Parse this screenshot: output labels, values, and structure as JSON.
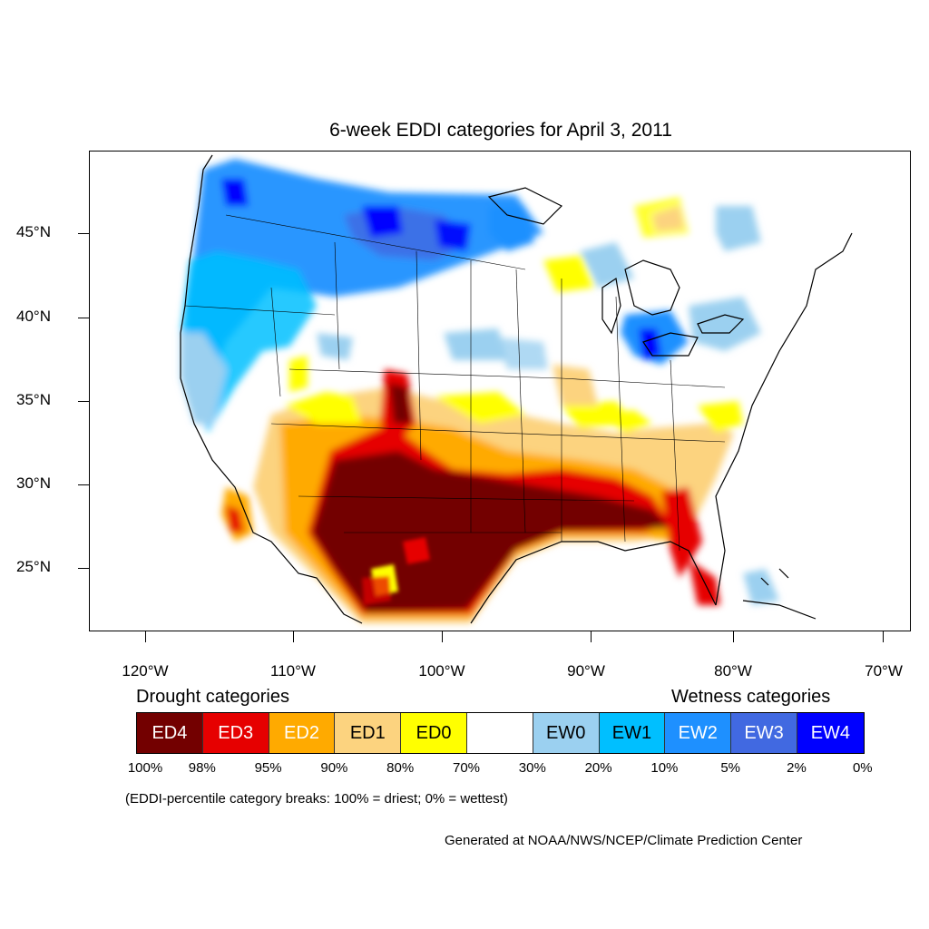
{
  "title": "6-week EDDI categories for April 3, 2011",
  "axes": {
    "lat_labels": [
      "45°N",
      "40°N",
      "35°N",
      "30°N",
      "25°N"
    ],
    "lon_labels": [
      "120°W",
      "110°W",
      "100°W",
      "90°W",
      "80°W",
      "70°W"
    ]
  },
  "legend": {
    "drought_heading": "Drought categories",
    "wetness_heading": "Wetness categories",
    "categories": [
      {
        "label": "ED4",
        "color": "#730000",
        "text_color": "#ffffff"
      },
      {
        "label": "ED3",
        "color": "#e60000",
        "text_color": "#ffffff"
      },
      {
        "label": "ED2",
        "color": "#ffaa00",
        "text_color": "#ffffff"
      },
      {
        "label": "ED1",
        "color": "#fcd37f",
        "text_color": "#000000"
      },
      {
        "label": "ED0",
        "color": "#ffff00",
        "text_color": "#000000"
      },
      {
        "label": "",
        "color": "#ffffff",
        "text_color": "#000000"
      },
      {
        "label": "EW0",
        "color": "#9bd0f0",
        "text_color": "#000000"
      },
      {
        "label": "EW1",
        "color": "#00bfff",
        "text_color": "#000000"
      },
      {
        "label": "EW2",
        "color": "#1e90ff",
        "text_color": "#ffffff"
      },
      {
        "label": "EW3",
        "color": "#4169e1",
        "text_color": "#ffffff"
      },
      {
        "label": "EW4",
        "color": "#0000ff",
        "text_color": "#ffffff"
      }
    ],
    "breaks": [
      "100%",
      "98%",
      "95%",
      "90%",
      "80%",
      "70%",
      "30%",
      "20%",
      "10%",
      "5%",
      "2%",
      "0%"
    ]
  },
  "note": "(EDDI-percentile category breaks: 100% = driest; 0% = wettest)",
  "credit": "Generated at NOAA/NWS/NCEP/Climate Prediction Center"
}
